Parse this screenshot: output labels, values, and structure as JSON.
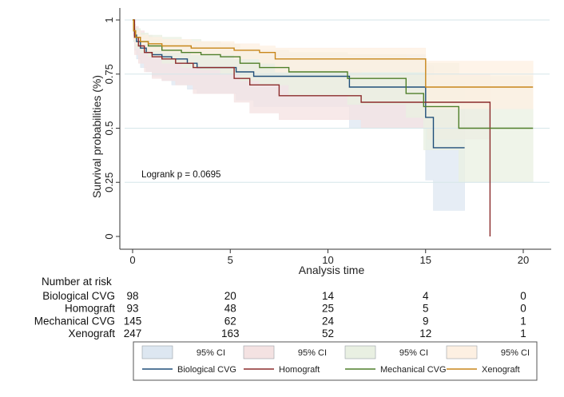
{
  "chart_data": {
    "type": "line",
    "subtype": "kaplan-meier step",
    "title": "",
    "xlabel": "Analysis time",
    "ylabel": "Survival probabilities (%)",
    "xlim": [
      0,
      20
    ],
    "ylim": [
      0,
      1
    ],
    "xticks": [
      "0",
      "5",
      "10",
      "15",
      "20"
    ],
    "yticks": [
      "0",
      "0.25",
      "0.5",
      "0.75",
      "1"
    ],
    "grid": "horizontal",
    "annotation": "Logrank p = 0.0695",
    "series": [
      {
        "name": "Biological CVG",
        "color": "#1f4e79",
        "ci_color": "#dde7f1",
        "x": [
          0,
          0.05,
          0.1,
          0.2,
          0.4,
          0.7,
          1.0,
          1.5,
          2.0,
          2.8,
          3.3,
          5.3,
          6.2,
          11.1,
          15.0,
          15.4,
          17.0
        ],
        "y": [
          1.0,
          0.96,
          0.93,
          0.9,
          0.87,
          0.85,
          0.84,
          0.83,
          0.82,
          0.8,
          0.78,
          0.76,
          0.74,
          0.69,
          0.55,
          0.41,
          0.41
        ],
        "ci_lower": [
          1.0,
          0.9,
          0.86,
          0.82,
          0.78,
          0.76,
          0.74,
          0.72,
          0.7,
          0.68,
          0.66,
          0.63,
          0.6,
          0.5,
          0.26,
          0.12,
          0.12
        ],
        "ci_upper": [
          1.0,
          0.99,
          0.97,
          0.95,
          0.93,
          0.92,
          0.91,
          0.9,
          0.89,
          0.88,
          0.87,
          0.86,
          0.84,
          0.84,
          0.79,
          0.71,
          0.71
        ]
      },
      {
        "name": "Homograft",
        "color": "#8b2b2b",
        "ci_color": "#f4e2e2",
        "x": [
          0,
          0.1,
          0.3,
          0.6,
          1.0,
          1.5,
          2.2,
          3.1,
          5.2,
          6.0,
          7.5,
          11.7,
          15.1,
          18.3
        ],
        "y": [
          1.0,
          0.92,
          0.88,
          0.85,
          0.83,
          0.82,
          0.8,
          0.78,
          0.73,
          0.7,
          0.65,
          0.62,
          0.62,
          0.0
        ],
        "ci_lower": [
          1.0,
          0.84,
          0.8,
          0.76,
          0.73,
          0.72,
          0.7,
          0.66,
          0.62,
          0.57,
          0.54,
          0.5,
          0.45,
          0.45
        ],
        "ci_upper": [
          1.0,
          0.97,
          0.95,
          0.93,
          0.91,
          0.9,
          0.88,
          0.86,
          0.84,
          0.8,
          0.77,
          0.75,
          0.75,
          0.75
        ]
      },
      {
        "name": "Mechanical CVG",
        "color": "#4f7f2a",
        "ci_color": "#e9f0e2",
        "x": [
          0,
          0.05,
          0.15,
          0.4,
          0.8,
          1.5,
          2.5,
          3.5,
          4.5,
          5.5,
          6.5,
          8.0,
          11.0,
          14.0,
          14.9,
          16.7,
          20.5
        ],
        "y": [
          1.0,
          0.95,
          0.92,
          0.9,
          0.88,
          0.86,
          0.85,
          0.84,
          0.83,
          0.8,
          0.78,
          0.76,
          0.73,
          0.66,
          0.6,
          0.5,
          0.5
        ],
        "ci_lower": [
          1.0,
          0.9,
          0.87,
          0.85,
          0.83,
          0.8,
          0.78,
          0.77,
          0.75,
          0.72,
          0.7,
          0.65,
          0.61,
          0.55,
          0.4,
          0.25,
          0.25
        ],
        "ci_upper": [
          1.0,
          0.98,
          0.96,
          0.94,
          0.93,
          0.92,
          0.91,
          0.9,
          0.89,
          0.87,
          0.86,
          0.85,
          0.84,
          0.82,
          0.8,
          0.74,
          0.74
        ]
      },
      {
        "name": "Xenograft",
        "color": "#c8861a",
        "ci_color": "#fdf0e2",
        "x": [
          0,
          0.05,
          0.15,
          0.4,
          0.8,
          1.5,
          3.0,
          5.2,
          6.5,
          7.3,
          15.0,
          20.5
        ],
        "y": [
          1.0,
          0.95,
          0.92,
          0.9,
          0.89,
          0.88,
          0.87,
          0.86,
          0.85,
          0.82,
          0.69,
          0.69
        ],
        "ci_lower": [
          1.0,
          0.91,
          0.89,
          0.87,
          0.86,
          0.85,
          0.84,
          0.82,
          0.8,
          0.76,
          0.59,
          0.59
        ],
        "ci_upper": [
          1.0,
          0.98,
          0.95,
          0.93,
          0.92,
          0.91,
          0.9,
          0.89,
          0.88,
          0.87,
          0.81,
          0.81
        ]
      }
    ],
    "risk_table": {
      "header": "Number at risk",
      "times": [
        0,
        5,
        10,
        15,
        20
      ],
      "rows": [
        {
          "label": "Biological CVG",
          "counts": [
            "98",
            "20",
            "14",
            "4",
            "0"
          ]
        },
        {
          "label": "Homograft",
          "counts": [
            "93",
            "48",
            "25",
            "5",
            "0"
          ]
        },
        {
          "label": "Mechanical CVG",
          "counts": [
            "145",
            "62",
            "24",
            "9",
            "1"
          ]
        },
        {
          "label": "Xenograft",
          "counts": [
            "247",
            "163",
            "52",
            "12",
            "1"
          ]
        }
      ]
    },
    "legend": {
      "position": "bottom",
      "ci_label": "95% CI"
    }
  }
}
